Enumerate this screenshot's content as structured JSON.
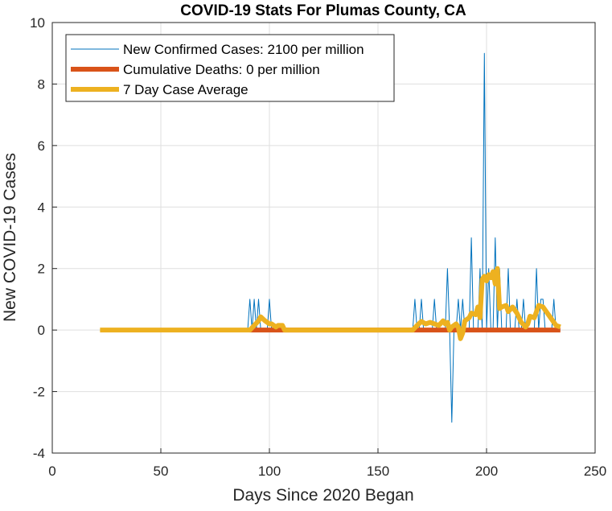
{
  "chart_data": {
    "type": "line",
    "title": "COVID-19 Stats For Plumas County, CA",
    "xlabel": "Days Since 2020 Began",
    "ylabel": "New COVID-19 Cases",
    "xlim": [
      0,
      250
    ],
    "ylim": [
      -4,
      10
    ],
    "xticks": [
      0,
      50,
      100,
      150,
      200,
      250
    ],
    "yticks": [
      -4,
      -2,
      0,
      2,
      4,
      6,
      8,
      10
    ],
    "grid": true,
    "legend_position": "top-left",
    "series": [
      {
        "name": "New Confirmed Cases: 2100 per million",
        "color": "#0072BD",
        "line_width": "thin",
        "points": [
          [
            22,
            0
          ],
          [
            90,
            0
          ],
          [
            91,
            1
          ],
          [
            92,
            0
          ],
          [
            93,
            1
          ],
          [
            94,
            0
          ],
          [
            95,
            1
          ],
          [
            96,
            0
          ],
          [
            97,
            0
          ],
          [
            98,
            0
          ],
          [
            99,
            0
          ],
          [
            100,
            1
          ],
          [
            101,
            0
          ],
          [
            102,
            0
          ],
          [
            107,
            0
          ],
          [
            166,
            0
          ],
          [
            167,
            1
          ],
          [
            168,
            0
          ],
          [
            169,
            0
          ],
          [
            170,
            1
          ],
          [
            171,
            0
          ],
          [
            172,
            0
          ],
          [
            173,
            0
          ],
          [
            174,
            0
          ],
          [
            175,
            0
          ],
          [
            176,
            1
          ],
          [
            177,
            0
          ],
          [
            178,
            0
          ],
          [
            179,
            0
          ],
          [
            180,
            0
          ],
          [
            181,
            0
          ],
          [
            182,
            2
          ],
          [
            183,
            0
          ],
          [
            184,
            -3
          ],
          [
            185,
            0
          ],
          [
            186,
            0
          ],
          [
            187,
            1
          ],
          [
            188,
            0
          ],
          [
            189,
            1
          ],
          [
            190,
            0
          ],
          [
            191,
            0
          ],
          [
            192,
            0
          ],
          [
            193,
            3
          ],
          [
            194,
            0
          ],
          [
            195,
            0
          ],
          [
            196,
            0
          ],
          [
            197,
            2
          ],
          [
            198,
            0
          ],
          [
            199,
            9
          ],
          [
            200,
            0
          ],
          [
            201,
            2
          ],
          [
            202,
            0
          ],
          [
            203,
            0
          ],
          [
            204,
            3
          ],
          [
            205,
            0
          ],
          [
            206,
            2
          ],
          [
            207,
            0
          ],
          [
            208,
            0
          ],
          [
            209,
            0
          ],
          [
            210,
            2
          ],
          [
            211,
            0
          ],
          [
            212,
            0
          ],
          [
            213,
            0
          ],
          [
            214,
            1
          ],
          [
            215,
            0
          ],
          [
            216,
            0
          ],
          [
            217,
            1
          ],
          [
            218,
            0
          ],
          [
            219,
            0
          ],
          [
            220,
            0
          ],
          [
            221,
            0
          ],
          [
            222,
            0
          ],
          [
            223,
            2
          ],
          [
            224,
            0
          ],
          [
            225,
            1
          ],
          [
            226,
            1
          ],
          [
            227,
            0
          ],
          [
            228,
            0
          ],
          [
            229,
            0
          ],
          [
            230,
            0
          ],
          [
            231,
            1
          ],
          [
            232,
            0
          ],
          [
            234,
            0
          ]
        ]
      },
      {
        "name": "Cumulative Deaths: 0 per million",
        "color": "#D95319",
        "line_width": "thick",
        "points": [
          [
            91,
            0
          ],
          [
            107,
            0
          ],
          [
            167,
            0
          ],
          [
            234,
            0
          ]
        ]
      },
      {
        "name": "7 Day Case Average",
        "color": "#EDB120",
        "line_width": "thick",
        "points": [
          [
            22,
            0
          ],
          [
            91,
            0
          ],
          [
            93,
            0.15
          ],
          [
            95,
            0.3
          ],
          [
            96,
            0.43
          ],
          [
            98,
            0.3
          ],
          [
            100,
            0.2
          ],
          [
            101,
            0.2
          ],
          [
            103,
            0.1
          ],
          [
            104,
            0.15
          ],
          [
            106,
            0.15
          ],
          [
            107,
            0
          ],
          [
            166,
            0
          ],
          [
            168,
            0.15
          ],
          [
            170,
            0.28
          ],
          [
            172,
            0.2
          ],
          [
            174,
            0.25
          ],
          [
            176,
            0.2
          ],
          [
            178,
            0.15
          ],
          [
            180,
            0.3
          ],
          [
            181,
            0.2
          ],
          [
            182,
            0.25
          ],
          [
            183,
            0
          ],
          [
            184,
            0.1
          ],
          [
            186,
            0.2
          ],
          [
            187,
            0.1
          ],
          [
            188,
            -0.28
          ],
          [
            189,
            -0.1
          ],
          [
            190,
            0.3
          ],
          [
            192,
            0.4
          ],
          [
            193,
            0.55
          ],
          [
            195,
            0.5
          ],
          [
            196,
            0.75
          ],
          [
            197,
            0.4
          ],
          [
            198,
            1.65
          ],
          [
            199,
            1.75
          ],
          [
            200,
            1.6
          ],
          [
            201,
            1.8
          ],
          [
            202,
            1.7
          ],
          [
            203,
            1.9
          ],
          [
            204,
            1.5
          ],
          [
            205,
            2.0
          ],
          [
            206,
            0.7
          ],
          [
            207,
            0.75
          ],
          [
            209,
            0.8
          ],
          [
            210,
            0.6
          ],
          [
            212,
            0.75
          ],
          [
            214,
            0.55
          ],
          [
            216,
            0.25
          ],
          [
            218,
            0.1
          ],
          [
            219,
            0.2
          ],
          [
            220,
            0.45
          ],
          [
            222,
            0.4
          ],
          [
            223,
            0.6
          ],
          [
            224,
            0.8
          ],
          [
            226,
            0.75
          ],
          [
            228,
            0.55
          ],
          [
            230,
            0.35
          ],
          [
            232,
            0.15
          ],
          [
            234,
            0.1
          ]
        ]
      }
    ]
  }
}
